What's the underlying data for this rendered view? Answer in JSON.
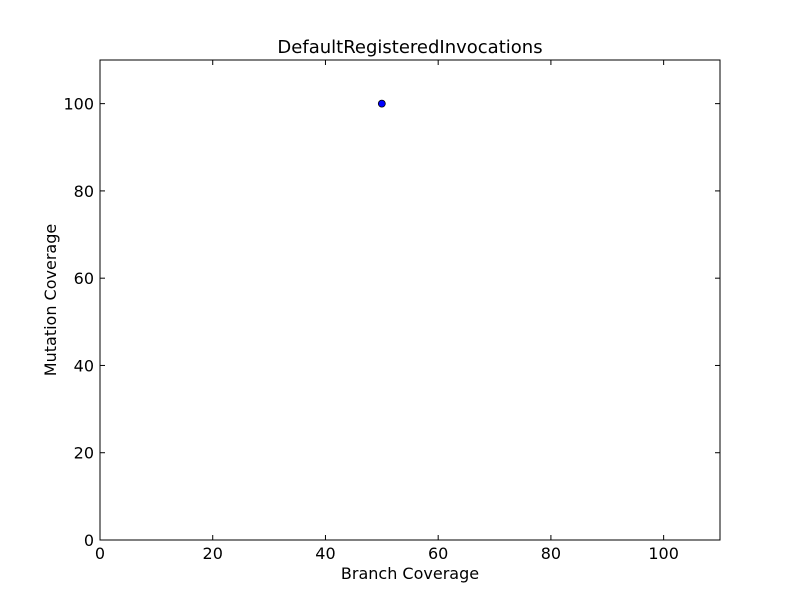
{
  "chart_data": {
    "type": "scatter",
    "title": "DefaultRegisteredInvocations",
    "xlabel": "Branch Coverage",
    "ylabel": "Mutation Coverage",
    "xlim": [
      0,
      110
    ],
    "ylim": [
      0,
      110
    ],
    "xticks": [
      0,
      20,
      40,
      60,
      80,
      100
    ],
    "yticks": [
      0,
      20,
      40,
      60,
      80,
      100
    ],
    "grid": false,
    "points": [
      {
        "x": 50,
        "y": 100
      }
    ],
    "marker_color": "#0000ff"
  }
}
